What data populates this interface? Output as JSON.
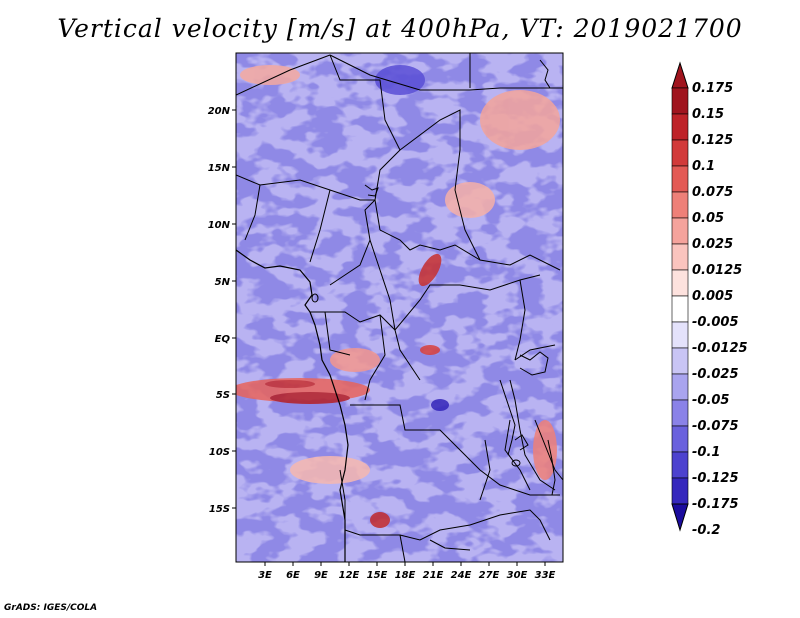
{
  "title": "Vertical velocity [m/s] at 400hPa, VT: 2019021700",
  "footer": "GrADS: IGES/COLA",
  "map": {
    "region": "Central Africa",
    "lat_ticks": [
      "20N",
      "15N",
      "10N",
      "5N",
      "EQ",
      "5S",
      "10S",
      "15S"
    ],
    "lon_ticks": [
      "3E",
      "6E",
      "9E",
      "12E",
      "15E",
      "18E",
      "21E",
      "24E",
      "27E",
      "30E",
      "33E"
    ]
  },
  "colorbar": {
    "labels": [
      "0.175",
      "0.15",
      "0.125",
      "0.1",
      "0.075",
      "0.05",
      "0.025",
      "0.0125",
      "0.005",
      "-0.005",
      "-0.0125",
      "-0.025",
      "-0.05",
      "-0.075",
      "-0.1",
      "-0.125",
      "-0.175",
      "-0.2"
    ],
    "colors": [
      "#a0141e",
      "#be2228",
      "#d23a3a",
      "#e35a55",
      "#ee8078",
      "#f5a39c",
      "#fac4be",
      "#fde2de",
      "#ffffff",
      "#e4e2fb",
      "#c9c5f5",
      "#a9a4ef",
      "#8a82e8",
      "#6a61dd",
      "#4d42cf",
      "#3527bd",
      "#1b0c9e"
    ]
  }
}
